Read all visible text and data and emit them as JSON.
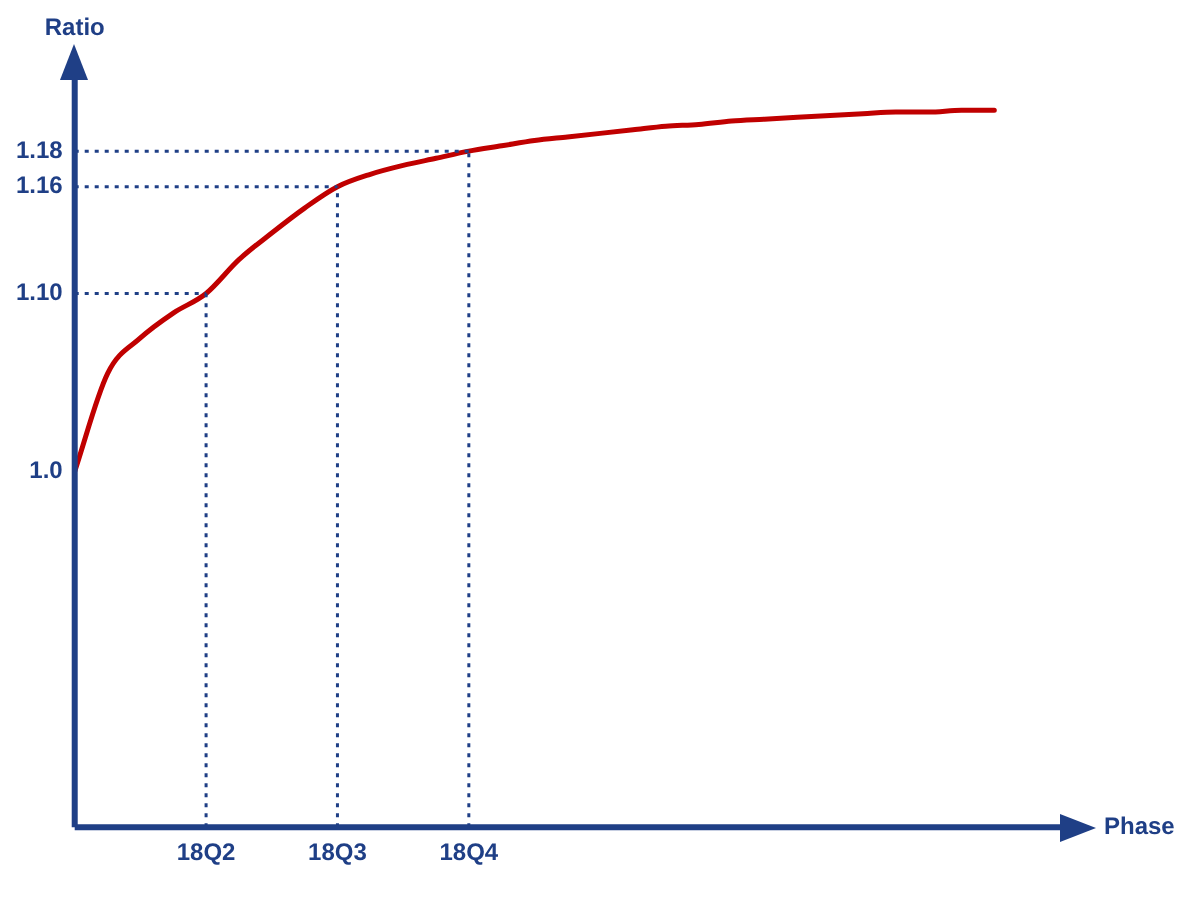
{
  "chart_data": {
    "type": "line",
    "xlabel": "Phase",
    "ylabel": "Ratio",
    "categories": [
      null,
      null,
      null,
      null,
      "18Q2",
      null,
      null,
      null,
      "18Q3",
      null,
      null,
      null,
      "18Q4",
      null,
      null,
      null,
      null,
      null,
      null,
      null,
      null,
      null,
      null,
      null,
      null,
      null,
      null,
      null,
      null,
      null,
      null
    ],
    "series": [
      {
        "color": "#c00000",
        "values": [
          1.0,
          1.055,
          1.075,
          1.089,
          1.1,
          1.119,
          1.134,
          1.148,
          1.16,
          1.167,
          1.172,
          1.176,
          1.18,
          1.183,
          1.186,
          1.188,
          1.19,
          1.192,
          1.194,
          1.195,
          1.197,
          1.198,
          1.199,
          1.2,
          1.201,
          1.202,
          1.202,
          1.203,
          1.203,
          null,
          null
        ]
      }
    ],
    "ylim": [
      0.8,
      1.22
    ],
    "yticks": [
      {
        "value": 1,
        "label": "1.0"
      },
      {
        "value": 1.1,
        "label": "1.10"
      },
      {
        "value": 1.16,
        "label": "1.16"
      },
      {
        "value": 1.18,
        "label": "1.18"
      }
    ],
    "ref_lines": [
      {
        "axis": "x",
        "value": "18Q2",
        "color": "#1f3f86",
        "line_style": "dotted"
      },
      {
        "axis": "x",
        "value": "18Q3",
        "color": "#1f3f86",
        "line_style": "dotted"
      },
      {
        "axis": "x",
        "value": "18Q4",
        "color": "#1f3f86",
        "line_style": "dotted"
      },
      {
        "axis": "y",
        "value": 1.1,
        "color": "#1f3f86",
        "line_style": "dotted"
      },
      {
        "axis": "y",
        "value": 1.16,
        "color": "#1f3f86",
        "line_style": "dotted"
      },
      {
        "axis": "y",
        "value": 1.18,
        "color": "#1f3f86",
        "line_style": "dotted"
      }
    ],
    "grid": false,
    "legend": false,
    "marker": "none",
    "line_style": "solid"
  }
}
